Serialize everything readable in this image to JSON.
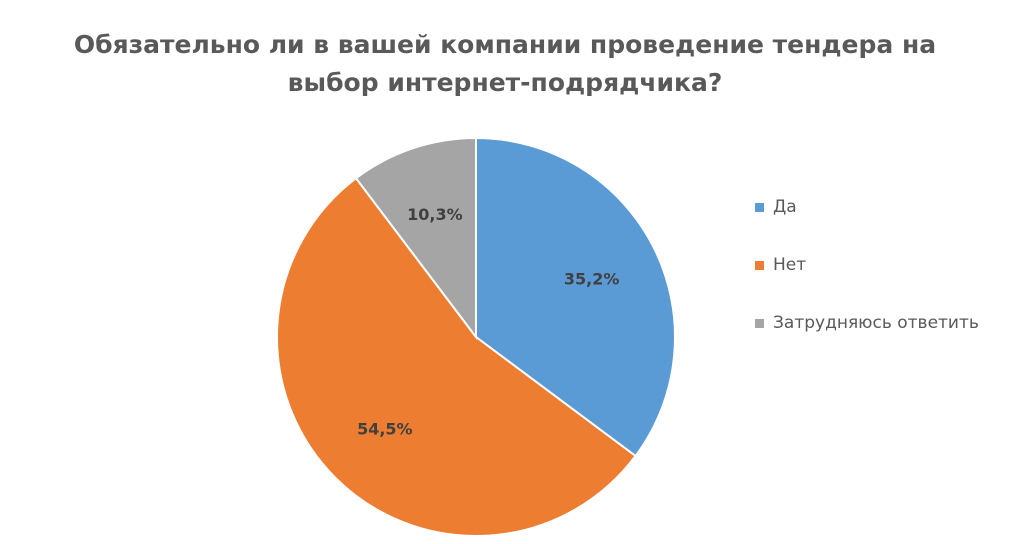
{
  "chart_data": {
    "type": "pie",
    "title_lines": [
      "Обязательно ли в вашей компании проведение тендера на",
      "выбор интернет-подрядчика?"
    ],
    "categories": [
      "Да",
      "Нет",
      "Затрудняюсь ответить"
    ],
    "values": [
      35.2,
      54.5,
      10.3
    ],
    "value_labels": [
      "35,2%",
      "54,5%",
      "10,3%"
    ],
    "colors": [
      "#5b9bd5",
      "#ed7d31",
      "#a5a5a5"
    ],
    "legend_position": "right"
  }
}
